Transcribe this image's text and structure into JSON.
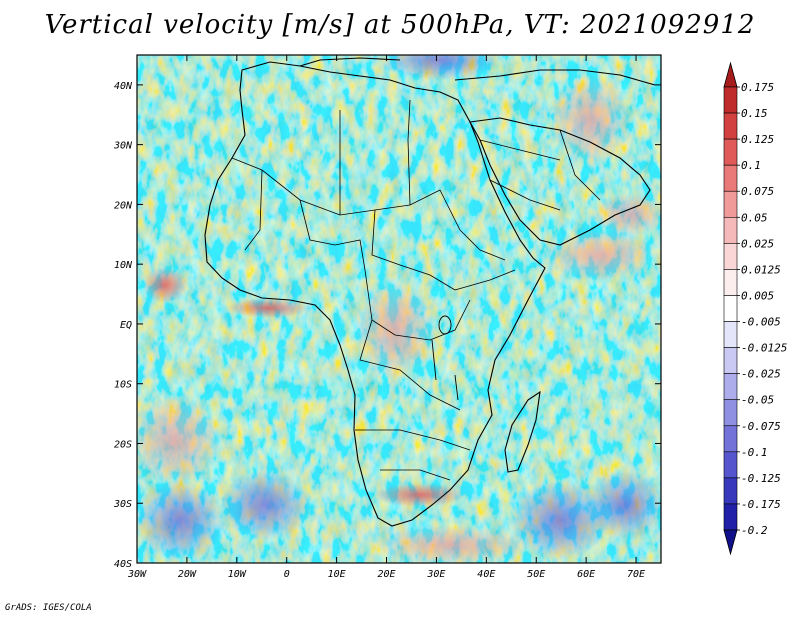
{
  "title": "Vertical velocity [m/s] at 500hPa, VT: 2021092912",
  "credit": "GrADS: IGES/COLA",
  "map": {
    "lat_ticks": [
      "40N",
      "30N",
      "20N",
      "10N",
      "EQ",
      "10S",
      "20S",
      "30S",
      "40S"
    ],
    "lon_ticks": [
      "30W",
      "20W",
      "10W",
      "0",
      "10E",
      "20E",
      "30E",
      "40E",
      "50E",
      "60E",
      "70E"
    ],
    "lat_range": [
      -40,
      45
    ],
    "lon_range": [
      -30,
      75
    ],
    "field": "vertical velocity at 500hPa",
    "units": "m/s"
  },
  "colorbar": {
    "labels": [
      "0.175",
      "0.15",
      "0.125",
      "0.1",
      "0.075",
      "0.05",
      "0.025",
      "0.0125",
      "0.005",
      "-0.005",
      "-0.0125",
      "-0.025",
      "-0.05",
      "-0.075",
      "-0.1",
      "-0.125",
      "-0.175",
      "-0.2"
    ],
    "colors": [
      "#a61b1b",
      "#bf2a2a",
      "#d34040",
      "#e05a5a",
      "#ea7a7a",
      "#f19a9a",
      "#f6b9b9",
      "#fad6d6",
      "#fdeeee",
      "#ffffff",
      "#e4e4fa",
      "#c9c9f3",
      "#adadec",
      "#9090e3",
      "#7272d9",
      "#5555cd",
      "#3838bd",
      "#2020a8",
      "#10108a"
    ]
  },
  "colors": {
    "ocean_base": "#dcdcf6",
    "warm": "#f4b4b4",
    "cool": "#a9a9ec",
    "border": "#000000"
  }
}
